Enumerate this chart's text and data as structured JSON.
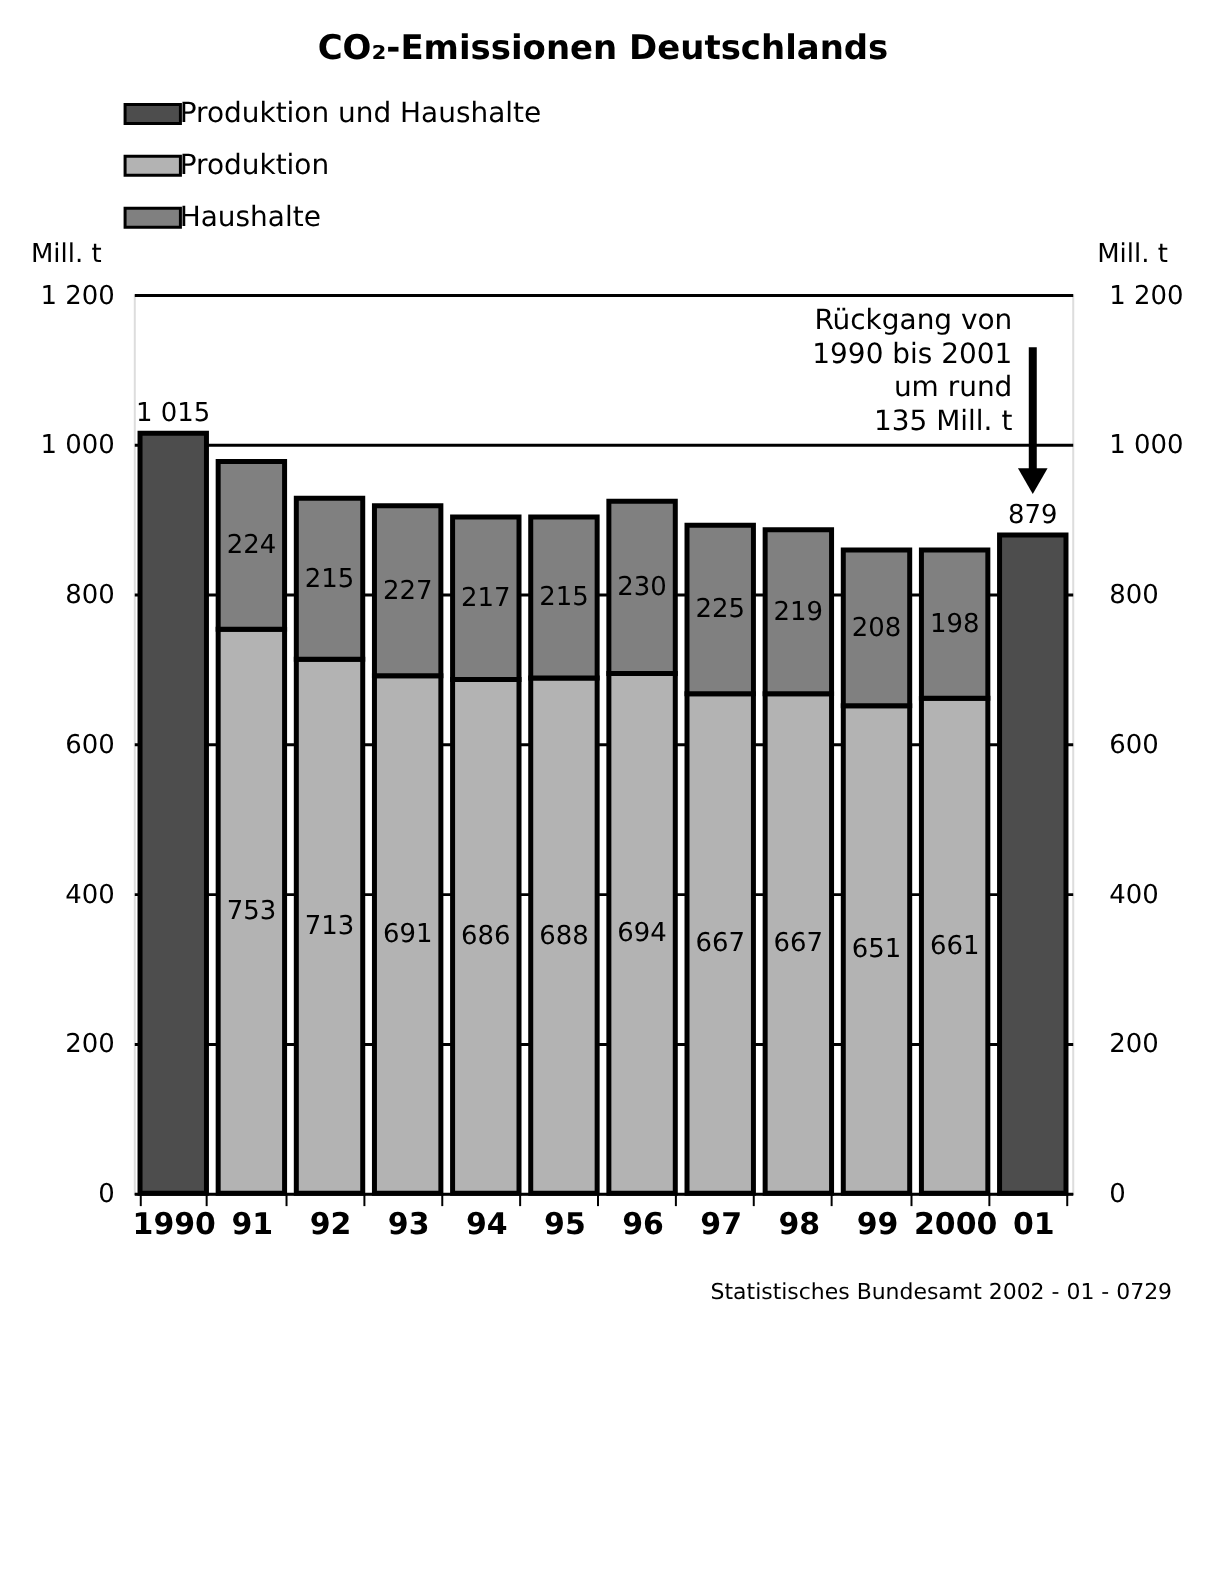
{
  "chart_data": {
    "type": "bar",
    "title": "CO₂-Emissionen Deutschlands",
    "stacked": true,
    "categories": [
      "1990",
      "91",
      "92",
      "93",
      "94",
      "95",
      "96",
      "97",
      "98",
      "99",
      "2000",
      "01"
    ],
    "series": [
      {
        "name": "Produktion und Haushalte",
        "color": "#4d4d4d",
        "values": [
          1015,
          null,
          null,
          null,
          null,
          null,
          null,
          null,
          null,
          null,
          null,
          879
        ],
        "value_labels": [
          "1 015",
          null,
          null,
          null,
          null,
          null,
          null,
          null,
          null,
          null,
          null,
          "879"
        ]
      },
      {
        "name": "Produktion",
        "color": "#b3b3b3",
        "values": [
          null,
          753,
          713,
          691,
          686,
          688,
          694,
          667,
          667,
          651,
          661,
          null
        ],
        "value_labels": [
          null,
          "753",
          "713",
          "691",
          "686",
          "688",
          "694",
          "667",
          "667",
          "651",
          "661",
          null
        ]
      },
      {
        "name": "Haushalte",
        "color": "#808080",
        "values": [
          null,
          224,
          215,
          227,
          217,
          215,
          230,
          225,
          219,
          208,
          198,
          null
        ],
        "value_labels": [
          null,
          "224",
          "215",
          "227",
          "217",
          "215",
          "230",
          "225",
          "219",
          "208",
          "198",
          null
        ]
      }
    ],
    "ylabel": "Mill. t",
    "y2label": "Mill. t",
    "ylim": [
      0,
      1200
    ],
    "yticks": [
      0,
      200,
      400,
      600,
      800,
      {
        "value": 1000,
        "label": "1 000"
      },
      {
        "value": 1200,
        "label": "1 200"
      }
    ],
    "y2lim": [
      0,
      1200
    ],
    "y2ticks": [
      0,
      200,
      400,
      600,
      800,
      {
        "value": 1000,
        "label": "1 000"
      },
      {
        "value": 1200,
        "label": "1 200"
      }
    ],
    "grid": "y",
    "legend": "top",
    "annotations": [
      "Rückgang von\n1990 bis 2001\num rund\n135 Mill. t",
      "Statistisches Bundesamt 2002 - 01 - 0729"
    ]
  }
}
